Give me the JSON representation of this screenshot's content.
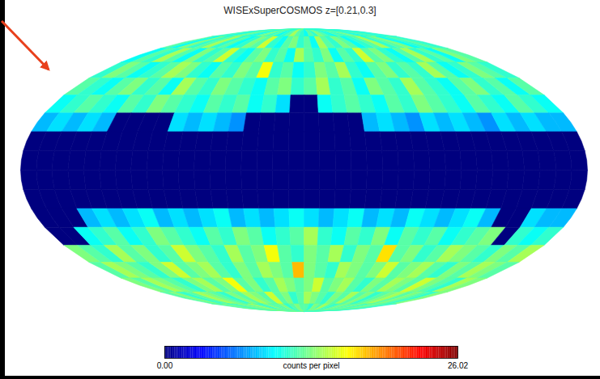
{
  "chart_data": {
    "type": "heatmap",
    "title": "WISExSuperCOSMOS z=[0.21,0.3]",
    "lon_bins": [
      180,
      170,
      160,
      150,
      140,
      130,
      120,
      110,
      100,
      90,
      80,
      70,
      60,
      50,
      40,
      30,
      20,
      10,
      0,
      -10,
      -20,
      -30,
      -40,
      -50,
      -60,
      -70,
      -80,
      -90,
      -100,
      -110,
      -120,
      -130,
      -140,
      -150,
      -160,
      -170,
      -180
    ],
    "lat_bins": [
      90,
      80,
      70,
      60,
      50,
      40,
      30,
      20,
      10,
      0,
      -10,
      -20,
      -30,
      -40,
      -50,
      -60,
      -70,
      -80,
      -90
    ],
    "values": [
      [
        11,
        12,
        10,
        11,
        13,
        12,
        11,
        10,
        12,
        13,
        11,
        12,
        10,
        11,
        12,
        14,
        12,
        11,
        10,
        12,
        11,
        13,
        12,
        11,
        10,
        12,
        11,
        12,
        13,
        11,
        10,
        12,
        11,
        12,
        10,
        11
      ],
      [
        12,
        10,
        13,
        11,
        12,
        14,
        11,
        12,
        10,
        11,
        13,
        12,
        15,
        11,
        10,
        12,
        13,
        11,
        12,
        10,
        14,
        12,
        11,
        13,
        12,
        10,
        11,
        12,
        14,
        11,
        12,
        13,
        10,
        11,
        12,
        11
      ],
      [
        10,
        12,
        11,
        14,
        12,
        10,
        13,
        11,
        12,
        15,
        11,
        10,
        12,
        13,
        11,
        12,
        10,
        14,
        12,
        11,
        13,
        10,
        12,
        11,
        15,
        12,
        13,
        11,
        10,
        12,
        14,
        11,
        12,
        10,
        13,
        12
      ],
      [
        11,
        13,
        12,
        10,
        11,
        12,
        14,
        13,
        11,
        10,
        12,
        11,
        13,
        12,
        16,
        11,
        12,
        10,
        11,
        13,
        12,
        14,
        11,
        10,
        12,
        13,
        11,
        12,
        11,
        14,
        12,
        10,
        11,
        13,
        12,
        11
      ],
      [
        12,
        11,
        10,
        12,
        13,
        11,
        12,
        10,
        14,
        12,
        11,
        13,
        12,
        11,
        10,
        12,
        13,
        11,
        12,
        14,
        11,
        12,
        10,
        13,
        12,
        11,
        14,
        12,
        11,
        10,
        12,
        13,
        11,
        12,
        10,
        12
      ],
      [
        10,
        11,
        12,
        11,
        10,
        12,
        11,
        13,
        12,
        11,
        10,
        12,
        11,
        12,
        10,
        11,
        9,
        0,
        0,
        10,
        11,
        12,
        11,
        10,
        12,
        11,
        13,
        12,
        11,
        10,
        12,
        11,
        10,
        12,
        11,
        10
      ],
      [
        8,
        9,
        8,
        9,
        8,
        0,
        0,
        0,
        0,
        9,
        8,
        9,
        8,
        7,
        0,
        0,
        0,
        0,
        0,
        0,
        0,
        0,
        8,
        9,
        8,
        7,
        9,
        8,
        9,
        8,
        7,
        9,
        8,
        9,
        8,
        8
      ],
      [
        0,
        0,
        0,
        0,
        0,
        0,
        0,
        0,
        0,
        0,
        0,
        0,
        0,
        0,
        0,
        0,
        0,
        0,
        0,
        0,
        0,
        0,
        0,
        0,
        0,
        0,
        0,
        0,
        0,
        0,
        0,
        0,
        0,
        0,
        0,
        0
      ],
      [
        0,
        0,
        0,
        0,
        0,
        0,
        0,
        0,
        0,
        0,
        0,
        0,
        0,
        0,
        0,
        0,
        0,
        0,
        0,
        0,
        0,
        0,
        0,
        0,
        0,
        0,
        0,
        0,
        0,
        0,
        0,
        0,
        0,
        0,
        0,
        0
      ],
      [
        0,
        0,
        0,
        0,
        0,
        0,
        0,
        0,
        0,
        0,
        0,
        0,
        0,
        0,
        0,
        0,
        0,
        0,
        0,
        0,
        0,
        0,
        0,
        0,
        0,
        0,
        0,
        0,
        0,
        0,
        0,
        0,
        0,
        0,
        0,
        0
      ],
      [
        0,
        0,
        0,
        0,
        0,
        0,
        0,
        0,
        0,
        0,
        0,
        0,
        0,
        0,
        0,
        0,
        0,
        0,
        0,
        0,
        0,
        0,
        0,
        0,
        0,
        0,
        0,
        0,
        0,
        0,
        0,
        0,
        0,
        0,
        0,
        0
      ],
      [
        0,
        0,
        0,
        8,
        9,
        8,
        9,
        10,
        8,
        9,
        8,
        9,
        10,
        8,
        9,
        8,
        9,
        10,
        9,
        8,
        9,
        10,
        8,
        9,
        8,
        10,
        9,
        8,
        9,
        10,
        8,
        0,
        0,
        9,
        8,
        8
      ],
      [
        0,
        0,
        10,
        11,
        12,
        10,
        11,
        13,
        12,
        11,
        10,
        12,
        11,
        13,
        12,
        10,
        11,
        12,
        14,
        11,
        10,
        12,
        11,
        13,
        10,
        12,
        11,
        12,
        10,
        11,
        12,
        13,
        0,
        11,
        10,
        11
      ],
      [
        13,
        12,
        11,
        14,
        12,
        13,
        11,
        12,
        15,
        13,
        12,
        11,
        14,
        12,
        13,
        16,
        12,
        11,
        13,
        12,
        14,
        11,
        13,
        12,
        17,
        12,
        13,
        11,
        12,
        14,
        13,
        12,
        11,
        13,
        12,
        14
      ],
      [
        12,
        14,
        13,
        12,
        11,
        13,
        15,
        12,
        13,
        14,
        12,
        11,
        13,
        12,
        14,
        13,
        12,
        18,
        13,
        12,
        11,
        14,
        13,
        12,
        13,
        15,
        12,
        13,
        14,
        12,
        11,
        13,
        12,
        14,
        13,
        12
      ],
      [
        13,
        12,
        14,
        13,
        12,
        11,
        13,
        14,
        12,
        13,
        16,
        12,
        13,
        11,
        12,
        14,
        13,
        12,
        13,
        15,
        12,
        13,
        14,
        12,
        11,
        13,
        12,
        14,
        13,
        12,
        15,
        13,
        12,
        11,
        14,
        13
      ],
      [
        12,
        13,
        11,
        12,
        14,
        13,
        12,
        11,
        13,
        12,
        14,
        13,
        12,
        15,
        12,
        13,
        11,
        12,
        14,
        13,
        12,
        11,
        13,
        12,
        14,
        12,
        13,
        11,
        12,
        13,
        14,
        12,
        13,
        12,
        11,
        13
      ],
      [
        12,
        12,
        13,
        11,
        12,
        13,
        12,
        14,
        12,
        11,
        13,
        12,
        12,
        13,
        11,
        12,
        13,
        12,
        12,
        11,
        13,
        12,
        14,
        12,
        11,
        12,
        13,
        12,
        12,
        13,
        11,
        12,
        13,
        12,
        12,
        11
      ]
    ],
    "colorbar": {
      "label": "counts per pixel",
      "range": [
        0,
        26.02
      ],
      "ticks": [
        {
          "value": 0,
          "label": "0.00"
        },
        {
          "value": 26.02,
          "label": "26.02"
        }
      ]
    }
  }
}
